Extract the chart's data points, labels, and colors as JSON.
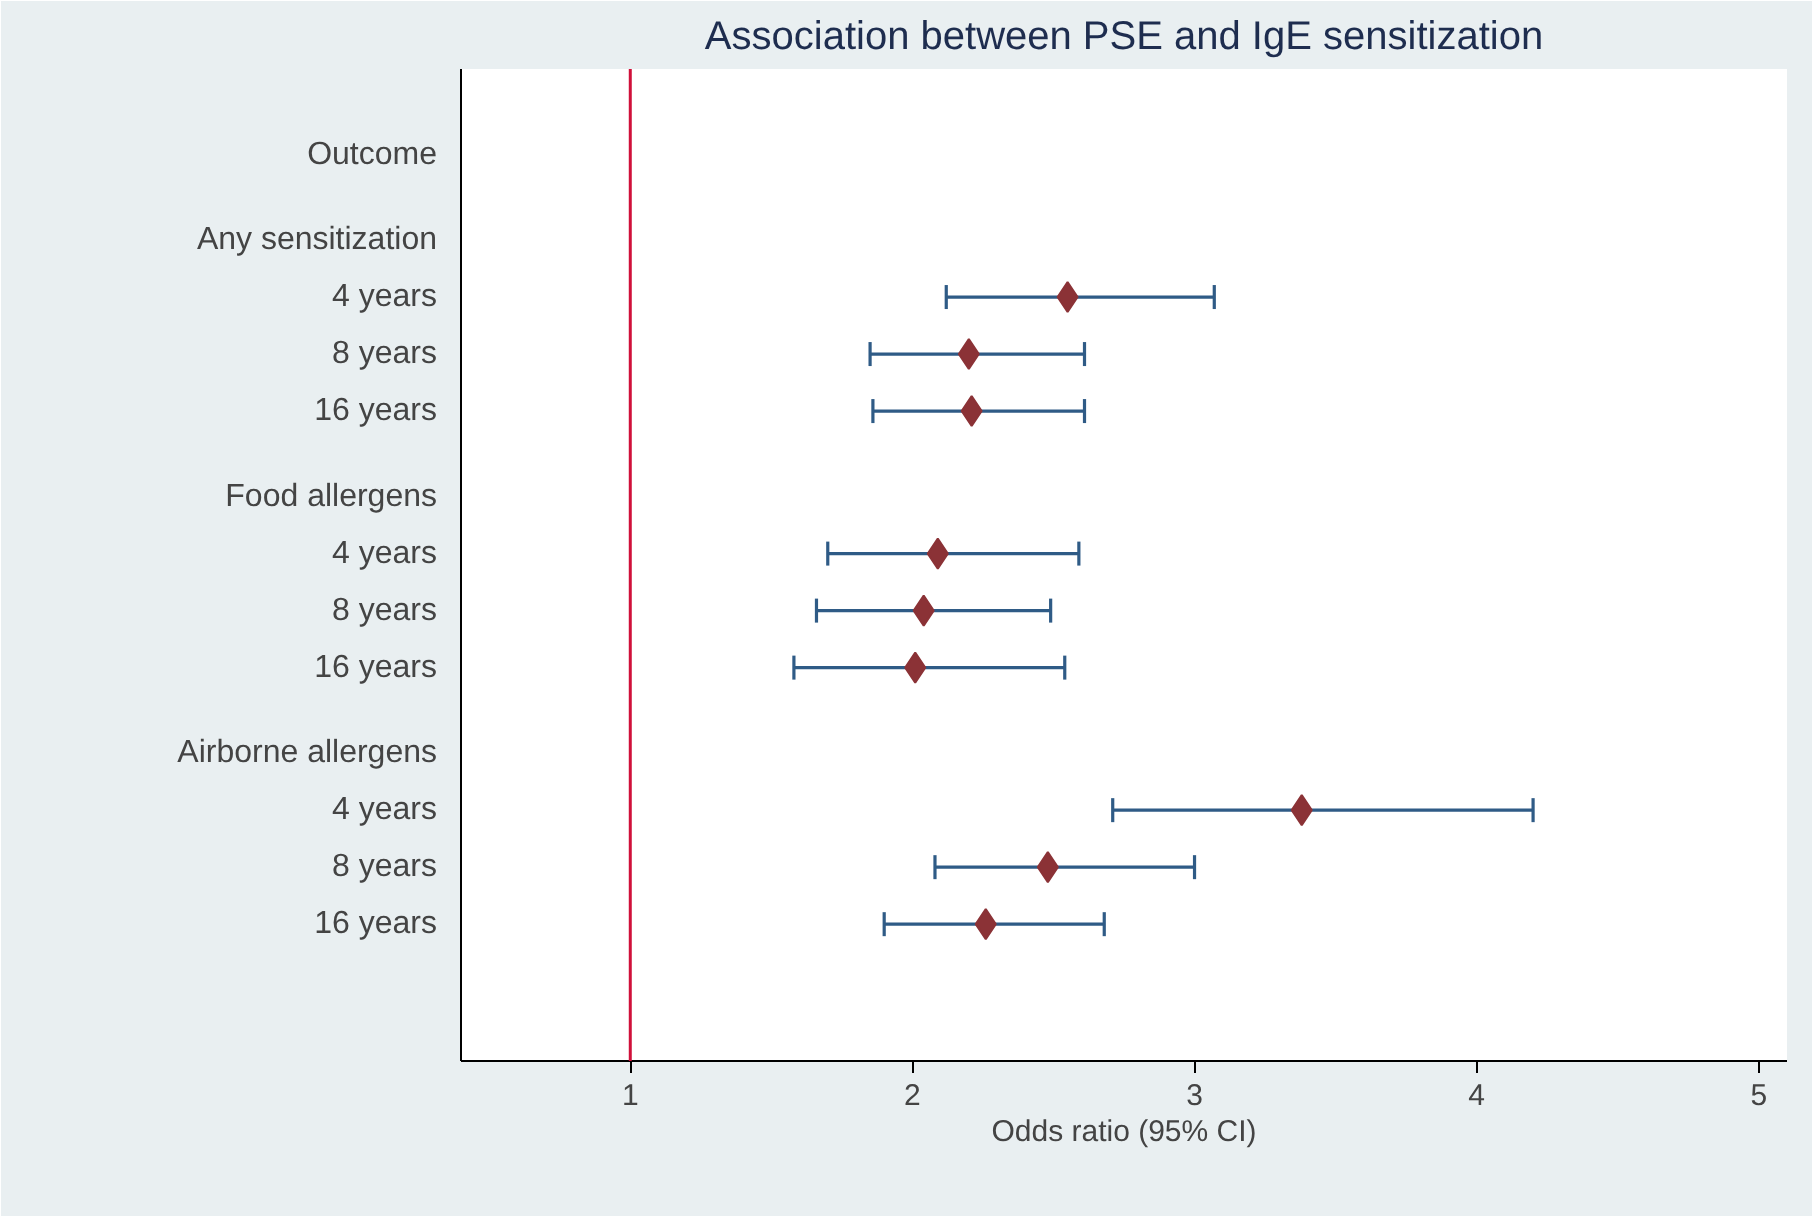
{
  "chart_data": {
    "type": "scatter",
    "title": "Association between PSE and IgE sensitization",
    "xlabel": "Odds ratio (95% CI)",
    "categories": [
      "Outcome",
      "Any sensitization",
      "4 years",
      "8 years",
      "16 years",
      "Food allergens",
      "4 years",
      "8 years",
      "16 years",
      "Airborne allergens",
      "4 years",
      "8 years",
      "16 years"
    ],
    "orientation": "horizontal",
    "series": [
      {
        "color": "#8b3236",
        "values": [
          null,
          null,
          2.55,
          2.2,
          2.21,
          null,
          2.09,
          2.04,
          2.01,
          null,
          3.38,
          2.48,
          2.26
        ],
        "errors": [
          null,
          null,
          [
            2.12,
            3.07
          ],
          [
            1.85,
            2.61
          ],
          [
            1.86,
            2.61
          ],
          null,
          [
            1.7,
            2.59
          ],
          [
            1.66,
            2.49
          ],
          [
            1.58,
            2.54
          ],
          null,
          [
            2.71,
            4.2
          ],
          [
            2.08,
            3.0
          ],
          [
            1.9,
            2.68
          ]
        ]
      }
    ],
    "marker": "diamond",
    "xlim": [
      0.4,
      5.1
    ],
    "xticks": [
      1,
      2,
      3,
      4,
      5
    ],
    "ref_lines": [
      {
        "axis": "x",
        "value": 1,
        "color": "#d0103a"
      }
    ],
    "grid": false
  }
}
